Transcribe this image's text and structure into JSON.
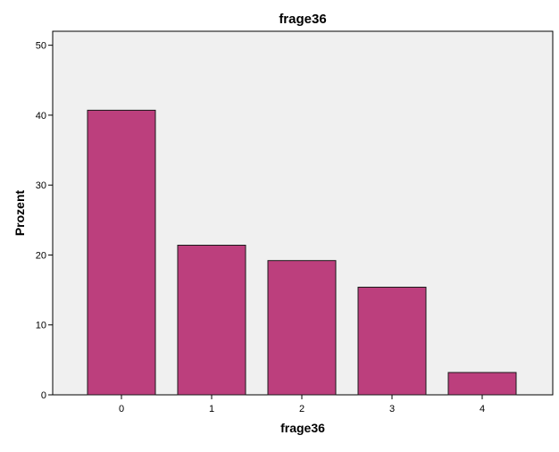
{
  "chart_data": {
    "type": "bar",
    "title": "frage36",
    "xlabel": "frage36",
    "ylabel": "Prozent",
    "categories": [
      "0",
      "1",
      "2",
      "3",
      "4"
    ],
    "values": [
      40.7,
      21.4,
      19.2,
      15.4,
      3.2
    ],
    "ylim": [
      0,
      52
    ],
    "yticks": [
      0,
      10,
      20,
      30,
      40,
      50
    ],
    "grid": false,
    "legend": "none",
    "colors": {
      "bar_fill": "#bc3f7d",
      "bar_stroke": "#1a1a1a",
      "plot_background": "#f0f0f0",
      "plot_border": "#000000",
      "page_background": "#ffffff"
    }
  }
}
